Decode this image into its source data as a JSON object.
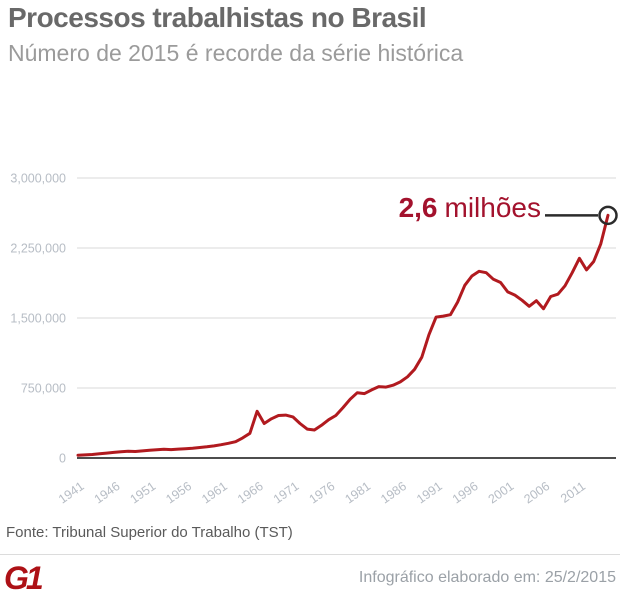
{
  "header": {
    "title": "Processos trabalhistas no Brasil",
    "subtitle": "Número de 2015 é recorde da série histórica"
  },
  "annotation": {
    "value": "2,6",
    "unit": "milhões",
    "color": "#a3122d",
    "callout_color": "#2b2b2b"
  },
  "chart_data": {
    "type": "line",
    "title": "Processos trabalhistas no Brasil",
    "subtitle": "Número de 2015 é recorde da série histórica",
    "xlabel": "",
    "ylabel": "",
    "grid": true,
    "legend": "none",
    "line_color": "#b11a1f",
    "grid_color": "#d9d9d9",
    "axis_color": "#4d4d4d",
    "tick_label_color": "#b7bdc5",
    "ylim": [
      0,
      3000000
    ],
    "yticks": [
      0,
      750000,
      1500000,
      2250000,
      3000000
    ],
    "ytick_labels": [
      "0",
      "750,000",
      "1,500,000",
      "2,250,000",
      "3,000,000"
    ],
    "xtick_labels": [
      "1941",
      "1946",
      "1951",
      "1956",
      "1961",
      "1966",
      "1971",
      "1976",
      "1981",
      "1986",
      "1991",
      "1996",
      "2001",
      "2006",
      "2011"
    ],
    "years": [
      1941,
      1942,
      1943,
      1944,
      1945,
      1946,
      1947,
      1948,
      1949,
      1950,
      1951,
      1952,
      1953,
      1954,
      1955,
      1956,
      1957,
      1958,
      1959,
      1960,
      1961,
      1962,
      1963,
      1964,
      1965,
      1966,
      1967,
      1968,
      1969,
      1970,
      1971,
      1972,
      1973,
      1974,
      1975,
      1976,
      1977,
      1978,
      1979,
      1980,
      1981,
      1982,
      1983,
      1984,
      1985,
      1986,
      1987,
      1988,
      1989,
      1990,
      1991,
      1992,
      1993,
      1994,
      1995,
      1996,
      1997,
      1998,
      1999,
      2000,
      2001,
      2002,
      2003,
      2004,
      2005,
      2006,
      2007,
      2008,
      2009,
      2010,
      2011,
      2012,
      2013,
      2014,
      2015
    ],
    "values": [
      30000,
      33000,
      38000,
      45000,
      52000,
      60000,
      66000,
      72000,
      70000,
      76000,
      82000,
      88000,
      93000,
      90000,
      95000,
      100000,
      105000,
      112000,
      120000,
      130000,
      143000,
      158000,
      175000,
      215000,
      265000,
      500000,
      370000,
      420000,
      455000,
      460000,
      440000,
      370000,
      310000,
      300000,
      350000,
      410000,
      455000,
      540000,
      630000,
      700000,
      690000,
      730000,
      765000,
      760000,
      780000,
      815000,
      870000,
      950000,
      1080000,
      1320000,
      1510000,
      1520000,
      1535000,
      1670000,
      1850000,
      1950000,
      2000000,
      1985000,
      1915000,
      1880000,
      1780000,
      1745000,
      1690000,
      1625000,
      1685000,
      1600000,
      1730000,
      1755000,
      1845000,
      1985000,
      2140000,
      2015000,
      2105000,
      2295000,
      2600000
    ],
    "endpoint_annotation": "2,6 milhões"
  },
  "source": {
    "label": "Fonte: Tribunal Superior do Trabalho (TST)"
  },
  "footer": {
    "logo": "G1",
    "credit": "Infográfico elaborado em: 25/2/2015"
  }
}
